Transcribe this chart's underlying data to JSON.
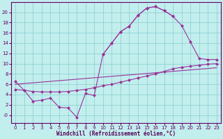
{
  "xlabel": "Windchill (Refroidissement éolien,°C)",
  "bg_color": "#c2eeee",
  "line_color": "#993399",
  "grid_color": "#88cccc",
  "xlim": [
    -0.5,
    23.5
  ],
  "ylim": [
    -1.5,
    22
  ],
  "xticks": [
    0,
    1,
    2,
    3,
    4,
    5,
    6,
    7,
    8,
    9,
    10,
    11,
    12,
    13,
    14,
    15,
    16,
    17,
    18,
    19,
    20,
    21,
    22,
    23
  ],
  "ytick_vals": [
    0,
    2,
    4,
    6,
    8,
    10,
    12,
    14,
    16,
    18,
    20
  ],
  "ytick_labels": [
    "-0",
    "2",
    "4",
    "6",
    "8",
    "10",
    "12",
    "14",
    "16",
    "18",
    "20"
  ],
  "curve_wavy_x": [
    0,
    1,
    2,
    3,
    4,
    5,
    6,
    7,
    8,
    9,
    10,
    11,
    12,
    13,
    14,
    15,
    16,
    17,
    18
  ],
  "curve_wavy_y": [
    6.5,
    4.8,
    2.7,
    2.9,
    3.3,
    1.5,
    1.4,
    -0.4,
    4.2,
    3.8,
    11.8,
    14.0,
    16.2,
    17.3,
    19.4,
    20.8,
    21.1,
    20.3,
    19.2
  ],
  "curve_smooth_x": [
    10,
    11,
    12,
    13,
    14,
    15,
    16,
    17,
    18,
    19,
    20,
    21,
    22,
    23
  ],
  "curve_smooth_y": [
    11.8,
    14.0,
    16.2,
    17.3,
    19.4,
    20.8,
    21.1,
    20.3,
    19.2,
    17.4,
    14.2,
    11.0,
    10.8,
    10.8
  ],
  "curve_lower_x": [
    0,
    1,
    2,
    3,
    4,
    5,
    6,
    7,
    8,
    9,
    10,
    11,
    12,
    13,
    14,
    15,
    16,
    17,
    18,
    19,
    20,
    21,
    22,
    23
  ],
  "curve_lower_y": [
    5.0,
    4.8,
    4.6,
    4.5,
    4.5,
    4.5,
    4.6,
    4.8,
    5.0,
    5.3,
    5.7,
    6.0,
    6.4,
    6.8,
    7.2,
    7.6,
    8.0,
    8.5,
    9.0,
    9.3,
    9.5,
    9.7,
    9.9,
    10.0
  ],
  "curve_line_x": [
    0,
    23
  ],
  "curve_line_y": [
    6.0,
    9.2
  ],
  "markersize": 2.5
}
